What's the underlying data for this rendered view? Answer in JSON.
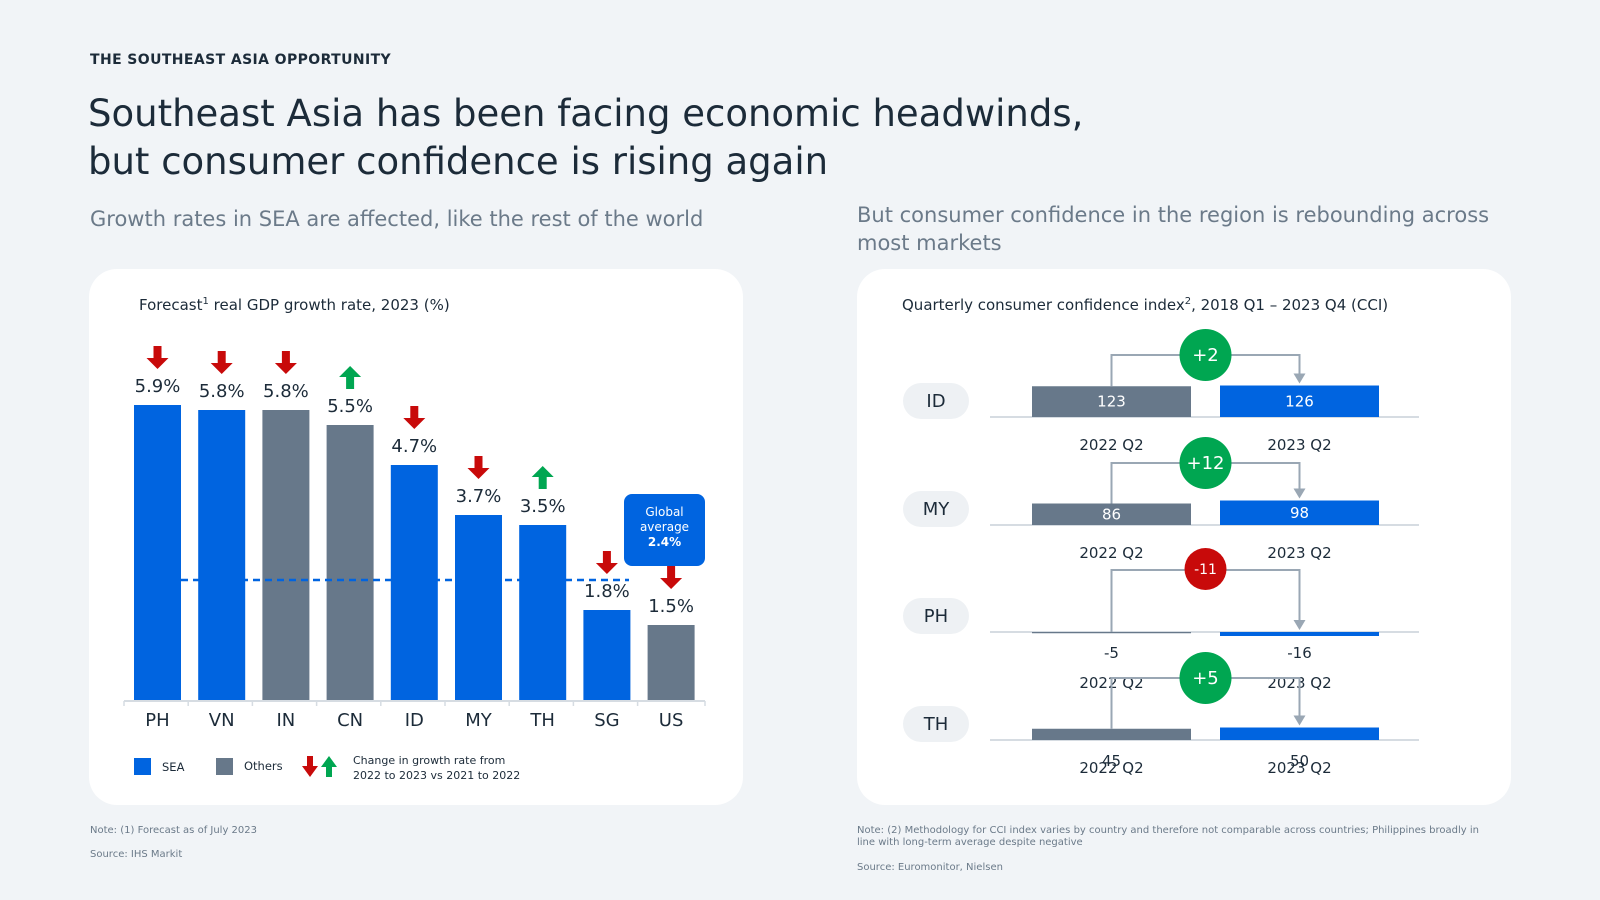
{
  "eyebrow": "THE SOUTHEAST ASIA OPPORTUNITY",
  "headline": {
    "line1": "Southeast Asia has been facing economic headwinds,",
    "line2": "but consumer confidence is rising again"
  },
  "left": {
    "subtitle": "Growth rates in SEA are affected, like the rest of the world",
    "chart_title": "real GDP growth rate, 2023 (%)",
    "chart_title_prefix": "Forecast",
    "chart_title_sup": "1",
    "legend": {
      "sea": "SEA",
      "others": "Others",
      "change_line1": "Change in growth rate from",
      "change_line2": "2022 to 2023 vs 2021 to 2022"
    },
    "global_avg": {
      "label1": "Global",
      "label2": "average",
      "value_label": "2.4%"
    },
    "note": "Note: (1) Forecast as of July 2023",
    "source": "Source: IHS Markit"
  },
  "right": {
    "subtitle": "But consumer confidence in the region is rebounding across most markets",
    "chart_title_prefix": "Quarterly consumer confidence index",
    "chart_title_sup": "2",
    "chart_title_suffix": ", 2018 Q1 – 2023 Q4 (CCI)",
    "note": "Note: (2) Methodology for CCI index varies by country and therefore not comparable across countries; Philippines broadly in line with long-term average despite negative",
    "source": "Source: Euromonitor, Nielsen"
  },
  "colors": {
    "sea": "#0064e0",
    "others": "#67788a",
    "down": "#c80a0a",
    "up": "#00a651",
    "connector": "#9aa7b4"
  },
  "chart_data": [
    {
      "type": "bar",
      "title": "Forecast real GDP growth rate, 2023 (%)",
      "categories": [
        "PH",
        "VN",
        "IN",
        "CN",
        "ID",
        "MY",
        "TH",
        "SG",
        "US"
      ],
      "values": [
        5.9,
        5.8,
        5.8,
        5.5,
        4.7,
        3.7,
        3.5,
        1.8,
        1.5
      ],
      "labels": [
        "5.9%",
        "5.8%",
        "5.8%",
        "5.5%",
        "4.7%",
        "3.7%",
        "3.5%",
        "1.8%",
        "1.5%"
      ],
      "group": [
        "SEA",
        "SEA",
        "Others",
        "Others",
        "SEA",
        "SEA",
        "SEA",
        "SEA",
        "Others"
      ],
      "change": [
        "down",
        "down",
        "down",
        "up",
        "down",
        "down",
        "up",
        "down",
        "down"
      ],
      "reference_line": {
        "name": "Global average",
        "value": 2.4
      },
      "ylim": [
        0,
        6.4
      ]
    },
    {
      "type": "bar",
      "title": "Quarterly consumer confidence index, 2018 Q1 – 2023 Q4 (CCI)",
      "rows": [
        {
          "country": "ID",
          "before_label": "2022 Q2",
          "before": 123,
          "after_label": "2023 Q2",
          "after": 126,
          "delta": "+2",
          "dir": "up"
        },
        {
          "country": "MY",
          "before_label": "2022 Q2",
          "before": 86,
          "after_label": "2023 Q2",
          "after": 98,
          "delta": "+12",
          "dir": "up"
        },
        {
          "country": "PH",
          "before_label": "2022 Q2",
          "before": -5,
          "after_label": "2023 Q2",
          "after": -16,
          "delta": "-11",
          "dir": "down"
        },
        {
          "country": "TH",
          "before_label": "2022 Q2",
          "before": 45,
          "after_label": "2023 Q2",
          "after": 50,
          "delta": "+5",
          "dir": "up"
        }
      ]
    }
  ]
}
